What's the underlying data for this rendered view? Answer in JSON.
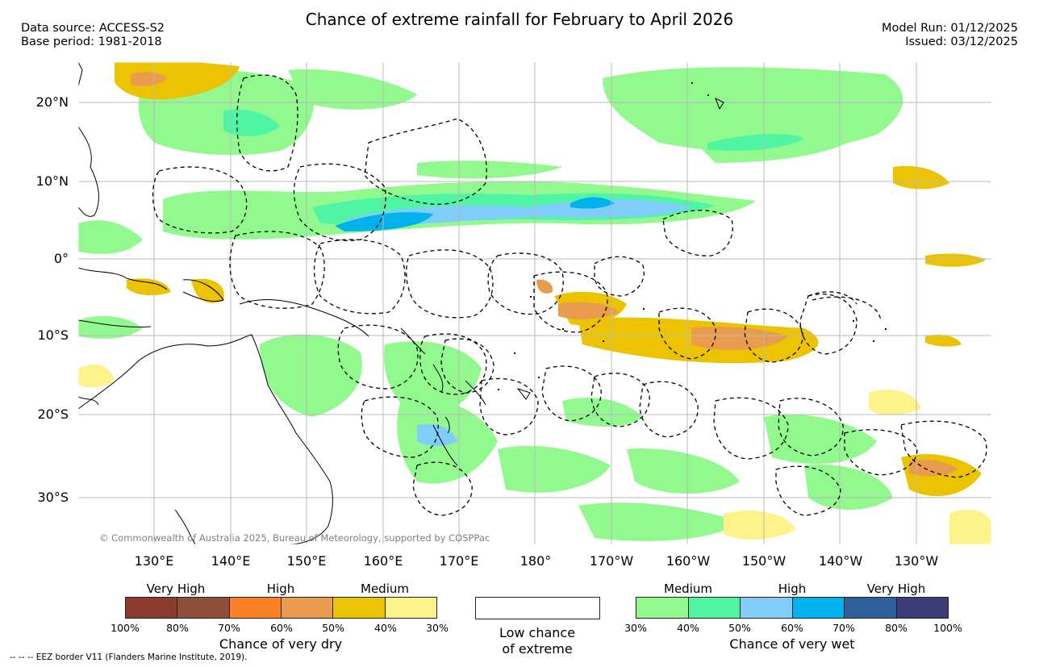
{
  "header": {
    "title": "Chance of extreme rainfall for February to April 2026",
    "data_source": "Data source: ACCESS-S2",
    "base_period": "Base period: 1981-2018",
    "model_run": "Model Run: 01/12/2025",
    "issued": "Issued: 03/12/2025"
  },
  "map": {
    "lat_labels": [
      "20°N",
      "10°N",
      "0°",
      "10°S",
      "20°S",
      "30°S"
    ],
    "lon_labels": [
      "130°E",
      "140°E",
      "150°E",
      "160°E",
      "170°E",
      "180°",
      "170°W",
      "160°W",
      "150°W",
      "140°W",
      "130°W"
    ],
    "copyright": "© Commonwealth of Australia 2025, Bureau of Meteorology, supported by COSPPac"
  },
  "legend": {
    "dry": {
      "caption": "Chance of very dry",
      "headers": [
        "Very High",
        "High",
        "Medium"
      ],
      "colors": [
        "#8b3a2e",
        "#8e4e3a",
        "#fb8026",
        "#e99c4e",
        "#ebc300",
        "#fdf38a"
      ],
      "ticks": [
        "100%",
        "80%",
        "70%",
        "60%",
        "50%",
        "40%",
        "30%"
      ]
    },
    "low": {
      "caption_line1": "Low chance",
      "caption_line2": "of extreme"
    },
    "wet": {
      "caption": "Chance of very wet",
      "headers": [
        "Medium",
        "High",
        "Very High"
      ],
      "colors": [
        "#92f98f",
        "#4ff5a2",
        "#80cdfb",
        "#00b2ec",
        "#2f5f9b",
        "#3c3c78"
      ],
      "ticks": [
        "30%",
        "40%",
        "50%",
        "60%",
        "70%",
        "80%",
        "100%"
      ]
    }
  },
  "footnote": "--  --  -- EEZ border V11 (Flanders Marine Institute, 2019)."
}
